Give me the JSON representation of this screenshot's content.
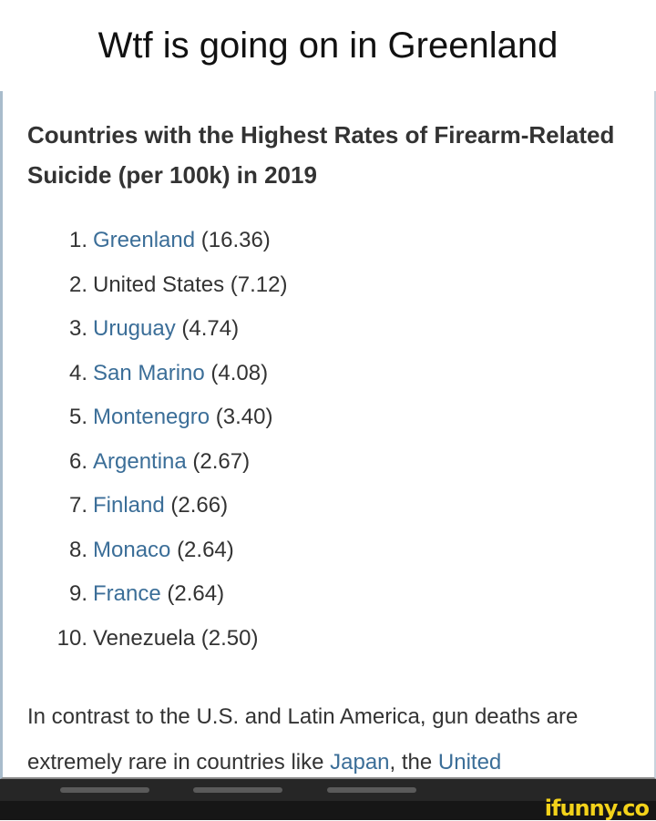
{
  "title": "Wtf is going on in Greenland",
  "card": {
    "heading": "Countries with the Highest Rates of Firearm-Related Suicide (per 100k) in 2019",
    "items": [
      {
        "num": "1.",
        "country": "Greenland",
        "value": "(16.36)",
        "link": true
      },
      {
        "num": "2.",
        "country": "United States",
        "value": "(7.12)",
        "link": false
      },
      {
        "num": "3.",
        "country": "Uruguay",
        "value": "(4.74)",
        "link": true
      },
      {
        "num": "4.",
        "country": "San Marino",
        "value": "(4.08)",
        "link": true
      },
      {
        "num": "5.",
        "country": "Montenegro",
        "value": "(3.40)",
        "link": true
      },
      {
        "num": "6.",
        "country": "Argentina",
        "value": "(2.67)",
        "link": true
      },
      {
        "num": "7.",
        "country": "Finland",
        "value": "(2.66)",
        "link": true
      },
      {
        "num": "8.",
        "country": "Monaco",
        "value": "(2.64)",
        "link": true
      },
      {
        "num": "9.",
        "country": "France",
        "value": "(2.64)",
        "link": true
      },
      {
        "num": "10.",
        "country": "Venezuela",
        "value": "(2.50)",
        "link": false
      }
    ],
    "paragraph": {
      "text1": "In contrast to the U.S. and Latin America, gun deaths are extremely rare in countries like ",
      "link1": "Japan",
      "text2": ", the ",
      "link2": "United"
    }
  },
  "watermark": "ifunny.co",
  "colors": {
    "link": "#3b6e98",
    "text": "#333333",
    "logo": "#f3d21a"
  }
}
